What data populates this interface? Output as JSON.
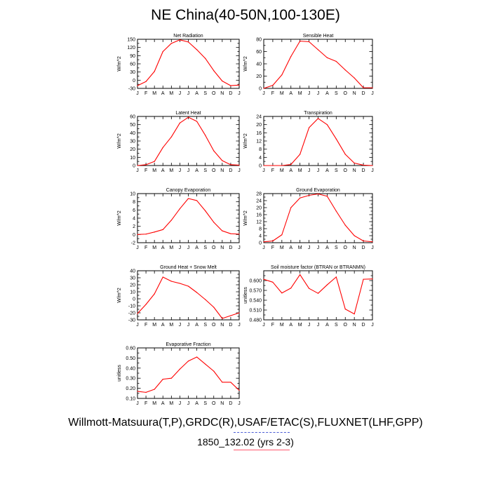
{
  "title": "NE China(40-50N,100-130E)",
  "footer": {
    "line1": "Willmott-Matsuura(T,P),GRDC(R),USAF/ETAC(S),FLUXNET(LHF,GPP)",
    "line2": "1850_132.02 (yrs 2-3)"
  },
  "colors": {
    "series": "#ff0000",
    "axis": "#000000"
  },
  "chart_data": [
    {
      "type": "line",
      "title": "Net Radiation",
      "ylabel": "W/m^2",
      "categories": [
        "J",
        "F",
        "M",
        "A",
        "M",
        "J",
        "J",
        "A",
        "S",
        "O",
        "N",
        "D",
        "J"
      ],
      "values": [
        -20,
        -5,
        32,
        105,
        135,
        148,
        140,
        112,
        80,
        35,
        -3,
        -20,
        -18
      ],
      "ylim": [
        -30,
        150
      ],
      "yticks": [
        -30,
        -15,
        0,
        15,
        30,
        45,
        60,
        75,
        90,
        105,
        120,
        135,
        150
      ],
      "ytick_labels": [
        "-30",
        "",
        "0",
        "",
        "30",
        "",
        "60",
        "",
        "90",
        "",
        "120",
        "",
        "150"
      ]
    },
    {
      "type": "line",
      "title": "Sensible Heat",
      "ylabel": "W/m^2",
      "categories": [
        "J",
        "F",
        "M",
        "A",
        "M",
        "J",
        "J",
        "A",
        "S",
        "O",
        "N",
        "D",
        "J"
      ],
      "values": [
        0,
        5,
        22,
        52,
        77,
        76,
        63,
        50,
        44,
        30,
        17,
        1,
        1
      ],
      "ylim": [
        0,
        80
      ],
      "yticks": [
        0,
        10,
        20,
        30,
        40,
        50,
        60,
        70,
        80
      ],
      "ytick_labels": [
        "0",
        "",
        "20",
        "",
        "40",
        "",
        "60",
        "",
        "80"
      ]
    },
    {
      "type": "line",
      "title": "Latent Heat",
      "ylabel": "W/m^2",
      "categories": [
        "J",
        "F",
        "M",
        "A",
        "M",
        "J",
        "J",
        "A",
        "S",
        "O",
        "N",
        "D",
        "J"
      ],
      "values": [
        0,
        1,
        5,
        22,
        35,
        52,
        59,
        54,
        37,
        18,
        6,
        1,
        0.5
      ],
      "ylim": [
        0,
        60
      ],
      "yticks": [
        0,
        5,
        10,
        15,
        20,
        25,
        30,
        35,
        40,
        45,
        50,
        55,
        60
      ],
      "ytick_labels": [
        "0",
        "",
        "10",
        "",
        "20",
        "",
        "30",
        "",
        "40",
        "",
        "50",
        "",
        "60"
      ]
    },
    {
      "type": "line",
      "title": "Transpiration",
      "ylabel": "W/m^2",
      "categories": [
        "J",
        "F",
        "M",
        "A",
        "M",
        "J",
        "J",
        "A",
        "S",
        "O",
        "N",
        "D",
        "J"
      ],
      "values": [
        0,
        0,
        0,
        0.5,
        5.5,
        18.5,
        23,
        20,
        13,
        5.5,
        1.2,
        0.2,
        0
      ],
      "ylim": [
        0,
        24
      ],
      "yticks": [
        0,
        2,
        4,
        6,
        8,
        10,
        12,
        14,
        16,
        18,
        20,
        22,
        24
      ],
      "ytick_labels": [
        "0",
        "",
        "4",
        "",
        "8",
        "",
        "12",
        "",
        "16",
        "",
        "20",
        "",
        "24"
      ]
    },
    {
      "type": "line",
      "title": "Canopy Evaporation",
      "ylabel": "W/m^2",
      "categories": [
        "J",
        "F",
        "M",
        "A",
        "M",
        "J",
        "J",
        "A",
        "S",
        "O",
        "N",
        "D",
        "J"
      ],
      "values": [
        0,
        0.1,
        0.6,
        1.2,
        3.5,
        6.3,
        8.8,
        8.3,
        5.8,
        3.0,
        0.9,
        0.2,
        0.1
      ],
      "ylim": [
        -2,
        10
      ],
      "yticks": [
        -2,
        -1,
        0,
        1,
        2,
        3,
        4,
        5,
        6,
        7,
        8,
        9,
        10
      ],
      "ytick_labels": [
        "-2",
        "",
        "0",
        "",
        "2",
        "",
        "4",
        "",
        "6",
        "",
        "8",
        "",
        "10"
      ]
    },
    {
      "type": "line",
      "title": "Ground Evaporation",
      "ylabel": "W/m^2",
      "categories": [
        "J",
        "F",
        "M",
        "A",
        "M",
        "J",
        "J",
        "A",
        "S",
        "O",
        "N",
        "D",
        "J"
      ],
      "values": [
        0.5,
        1,
        4.5,
        20,
        25.5,
        27,
        27.8,
        26.5,
        18,
        10,
        4,
        1,
        0.5
      ],
      "ylim": [
        0,
        28
      ],
      "yticks": [
        0,
        2,
        4,
        6,
        8,
        10,
        12,
        14,
        16,
        18,
        20,
        22,
        24,
        26,
        28
      ],
      "ytick_labels": [
        "0",
        "",
        "4",
        "",
        "8",
        "",
        "12",
        "",
        "16",
        "",
        "20",
        "",
        "24",
        "",
        "28"
      ]
    },
    {
      "type": "line",
      "title": "Ground Heat + Snow Melt",
      "ylabel": "W/m^2",
      "categories": [
        "J",
        "F",
        "M",
        "A",
        "M",
        "J",
        "J",
        "A",
        "S",
        "O",
        "N",
        "D",
        "J"
      ],
      "values": [
        -21,
        -8,
        7,
        31,
        25,
        22,
        18,
        9,
        -1,
        -12,
        -28,
        -24,
        -20
      ],
      "ylim": [
        -30,
        40
      ],
      "yticks": [
        -30,
        -25,
        -20,
        -15,
        -10,
        -5,
        0,
        5,
        10,
        15,
        20,
        25,
        30,
        35,
        40
      ],
      "ytick_labels": [
        "-30",
        "",
        "-20",
        "",
        "-10",
        "",
        "0",
        "",
        "10",
        "",
        "20",
        "",
        "30",
        "",
        "40"
      ]
    },
    {
      "type": "line",
      "title": "Soil moisture factor (BTRAN or BTRANMN)",
      "ylabel": "unitless",
      "categories": [
        "J",
        "F",
        "M",
        "A",
        "M",
        "J",
        "J",
        "A",
        "S",
        "O",
        "N",
        "D",
        "J"
      ],
      "values": [
        0.604,
        0.595,
        0.562,
        0.577,
        0.618,
        0.576,
        0.561,
        0.587,
        0.611,
        0.513,
        0.498,
        0.604,
        0.605
      ],
      "ylim": [
        0.48,
        0.63
      ],
      "yticks": [
        0.48,
        0.495,
        0.51,
        0.525,
        0.54,
        0.555,
        0.57,
        0.585,
        0.6,
        0.615
      ],
      "ytick_labels": [
        "0.480",
        "",
        "0.510",
        "",
        "0.540",
        "",
        "0.570",
        "",
        "0.600",
        ""
      ]
    },
    {
      "type": "line",
      "title": "Evaporative Fraction",
      "ylabel": "unitless",
      "categories": [
        "J",
        "F",
        "M",
        "A",
        "M",
        "J",
        "J",
        "A",
        "S",
        "O",
        "N",
        "D",
        "J"
      ],
      "values": [
        0.17,
        0.16,
        0.19,
        0.29,
        0.3,
        0.39,
        0.47,
        0.51,
        0.44,
        0.37,
        0.26,
        0.26,
        0.18
      ],
      "ylim": [
        0.1,
        0.6
      ],
      "yticks": [
        0.1,
        0.15,
        0.2,
        0.25,
        0.3,
        0.35,
        0.4,
        0.45,
        0.5,
        0.55,
        0.6
      ],
      "ytick_labels": [
        "0.10",
        "",
        "0.20",
        "",
        "0.30",
        "",
        "0.40",
        "",
        "0.50",
        "",
        "0.60"
      ]
    }
  ]
}
